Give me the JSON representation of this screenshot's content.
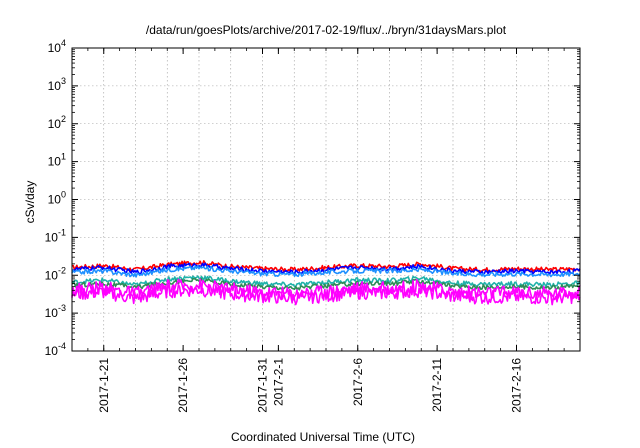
{
  "chart_data": {
    "type": "line",
    "title": "/data/run/goesPlots/archive/2017-02-19/flux/../bryn/31daysMars.plot",
    "xlabel": "Coordinated Universal Time (UTC)",
    "ylabel": "cSv/day",
    "xlim": [
      "2017-01-19",
      "2017-02-20"
    ],
    "yscale": "log",
    "ylim": [
      0.0001,
      10000
    ],
    "grid": true,
    "x_ticks": [
      "2017-01-21",
      "2017-01-26",
      "2017-01-31",
      "2017-02-01",
      "2017-02-06",
      "2017-02-11",
      "2017-02-16"
    ],
    "x_tick_labels": [
      "2017-1-21",
      "2017-1-26",
      "2017-1-31",
      "2017-2-1",
      "2017-2-6",
      "2017-2-11",
      "2017-2-16"
    ],
    "y_tick_labels": [
      {
        "base": "10",
        "exp": "-4"
      },
      {
        "base": "10",
        "exp": "-3"
      },
      {
        "base": "10",
        "exp": "-2"
      },
      {
        "base": "10",
        "exp": "-1"
      },
      {
        "base": "10",
        "exp": "0"
      },
      {
        "base": "10",
        "exp": "1"
      },
      {
        "base": "10",
        "exp": "2"
      },
      {
        "base": "10",
        "exp": "3"
      },
      {
        "base": "10",
        "exp": "4"
      }
    ],
    "x": [
      "2017-01-19",
      "2017-01-21",
      "2017-01-23",
      "2017-01-25",
      "2017-01-27",
      "2017-01-29",
      "2017-01-31",
      "2017-02-02",
      "2017-02-04",
      "2017-02-06",
      "2017-02-08",
      "2017-02-10",
      "2017-02-12",
      "2017-02-14",
      "2017-02-16",
      "2017-02-18",
      "2017-02-20"
    ],
    "series": [
      {
        "color": "#ff0000",
        "values": [
          0.016,
          0.018,
          0.014,
          0.019,
          0.022,
          0.017,
          0.015,
          0.014,
          0.016,
          0.018,
          0.017,
          0.02,
          0.015,
          0.014,
          0.015,
          0.014,
          0.015
        ]
      },
      {
        "color": "#0000ff",
        "values": [
          0.014,
          0.016,
          0.012,
          0.017,
          0.019,
          0.015,
          0.013,
          0.012,
          0.014,
          0.016,
          0.015,
          0.017,
          0.013,
          0.012,
          0.013,
          0.012,
          0.013
        ]
      },
      {
        "color": "#1e90ff",
        "values": [
          0.012,
          0.013,
          0.01,
          0.014,
          0.016,
          0.013,
          0.011,
          0.0105,
          0.012,
          0.013,
          0.013,
          0.014,
          0.011,
          0.0105,
          0.011,
          0.0105,
          0.011
        ]
      },
      {
        "color": "#20b2aa",
        "values": [
          0.0065,
          0.0075,
          0.0055,
          0.008,
          0.009,
          0.007,
          0.006,
          0.0055,
          0.0065,
          0.0075,
          0.0072,
          0.0085,
          0.0062,
          0.0058,
          0.006,
          0.0056,
          0.0062
        ]
      },
      {
        "color": "#2e8b57",
        "values": [
          0.0055,
          0.006,
          0.0048,
          0.0065,
          0.0075,
          0.0058,
          0.005,
          0.0046,
          0.0052,
          0.0062,
          0.006,
          0.007,
          0.0052,
          0.0048,
          0.005,
          0.0047,
          0.0052
        ]
      },
      {
        "color": "#ff00ff",
        "values": [
          0.0042,
          0.0048,
          0.0032,
          0.005,
          0.0055,
          0.0042,
          0.0036,
          0.0033,
          0.0038,
          0.0046,
          0.0044,
          0.0052,
          0.0037,
          0.0034,
          0.0036,
          0.0033,
          0.0037
        ]
      },
      {
        "color": "#ff00ff",
        "values": [
          0.0032,
          0.0036,
          0.0024,
          0.0038,
          0.0042,
          0.0032,
          0.0028,
          0.0025,
          0.0029,
          0.0035,
          0.0034,
          0.004,
          0.0028,
          0.0026,
          0.0027,
          0.0025,
          0.0028
        ]
      }
    ]
  }
}
